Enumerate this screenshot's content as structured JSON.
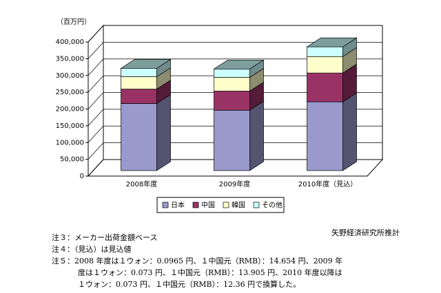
{
  "chart_data": {
    "type": "bar3d_stacked",
    "y_unit": "（百万円）",
    "categories": [
      "2008年度",
      "2009年度",
      "2010年度（見込）"
    ],
    "series": [
      {
        "name": "日本",
        "color": "#9999cc",
        "values": [
          200000,
          180000,
          205000
        ]
      },
      {
        "name": "中国",
        "color": "#993366",
        "values": [
          43000,
          57000,
          86000
        ]
      },
      {
        "name": "韓国",
        "color": "#ffffcc",
        "values": [
          37000,
          41000,
          49000
        ]
      },
      {
        "name": "その他",
        "color": "#ccffff",
        "values": [
          25000,
          25000,
          29000
        ]
      }
    ],
    "ylim": [
      0,
      400000
    ],
    "yticks": [
      0,
      {
        "value": 50000,
        "label": "50,000"
      },
      {
        "value": 100000,
        "label": "100,000"
      },
      {
        "value": 150000,
        "label": "150,000"
      },
      {
        "value": 200000,
        "label": "200,000"
      },
      {
        "value": 250000,
        "label": "250,000"
      },
      {
        "value": 300000,
        "label": "300,000"
      },
      {
        "value": 350000,
        "label": "350,000"
      },
      {
        "value": 400000,
        "label": "400,000"
      }
    ],
    "grid": true,
    "source": "矢野経済研究所推計",
    "notes": [
      [
        "注３：メーカー出荷金額ベース"
      ],
      [
        "注４：（見込）は見込値"
      ],
      [
        "注５：2008 年度は１ウォン：0.0965 円、１中国元（RMB）：14.654 円、2009 年",
        "度は１ウォン：0.073 円、１中国元（RMB）：13.905 円、2010 年度以降は",
        "１ウォン：0.073 円、１中国元（RMB）：12.36 円で換算した。"
      ]
    ]
  }
}
